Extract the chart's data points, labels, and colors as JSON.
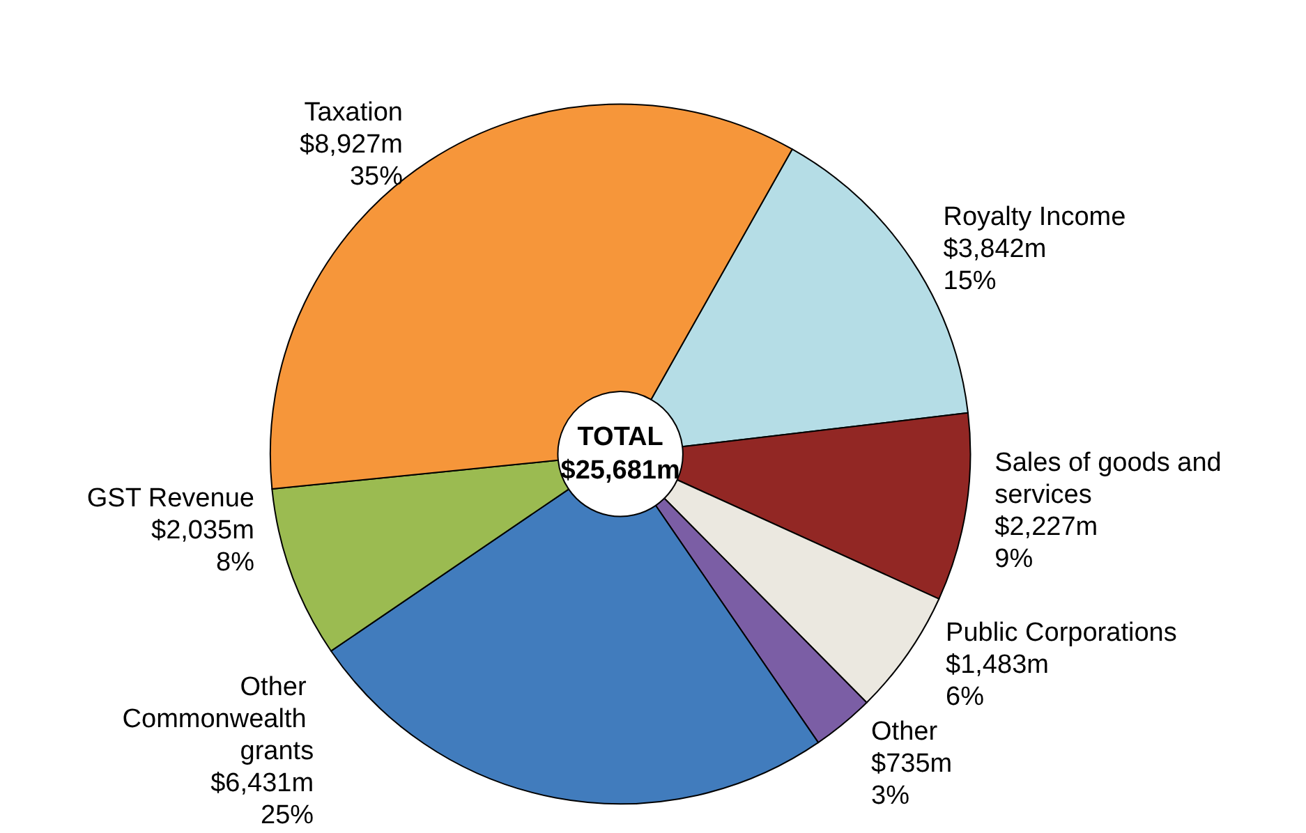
{
  "chart_data": {
    "type": "donut",
    "categories": [
      "Royalty Income",
      "Sales of goods and services",
      "Public Corporations",
      "Other",
      "Other Commonwealth grants",
      "GST Revenue",
      "Taxation"
    ],
    "values": [
      3842,
      2227,
      1483,
      735,
      6431,
      2035,
      8927
    ],
    "colors": [
      "#b5dde6",
      "#922724",
      "#ebe8e0",
      "#7b5ea5",
      "#417cbd",
      "#9bbb51",
      "#f6963a"
    ],
    "value_labels": [
      "$3,842m",
      "$2,227m",
      "$1,483m",
      "$735m",
      "$6,431m",
      "$2,035m",
      "$8,927m"
    ],
    "annotations": [
      "TOTAL\n$25,681m",
      {
        "text": "15%",
        "x": "Royalty Income"
      },
      {
        "text": "9%",
        "x": "Sales of goods and services"
      },
      {
        "text": "6%",
        "x": "Public Corporations"
      },
      {
        "text": "3%",
        "x": "Other"
      },
      {
        "text": "25%",
        "x": "Other Commonwealth grants"
      },
      {
        "text": "8%",
        "x": "GST Revenue"
      },
      {
        "text": "35%",
        "x": "Taxation"
      }
    ],
    "legend": false
  }
}
